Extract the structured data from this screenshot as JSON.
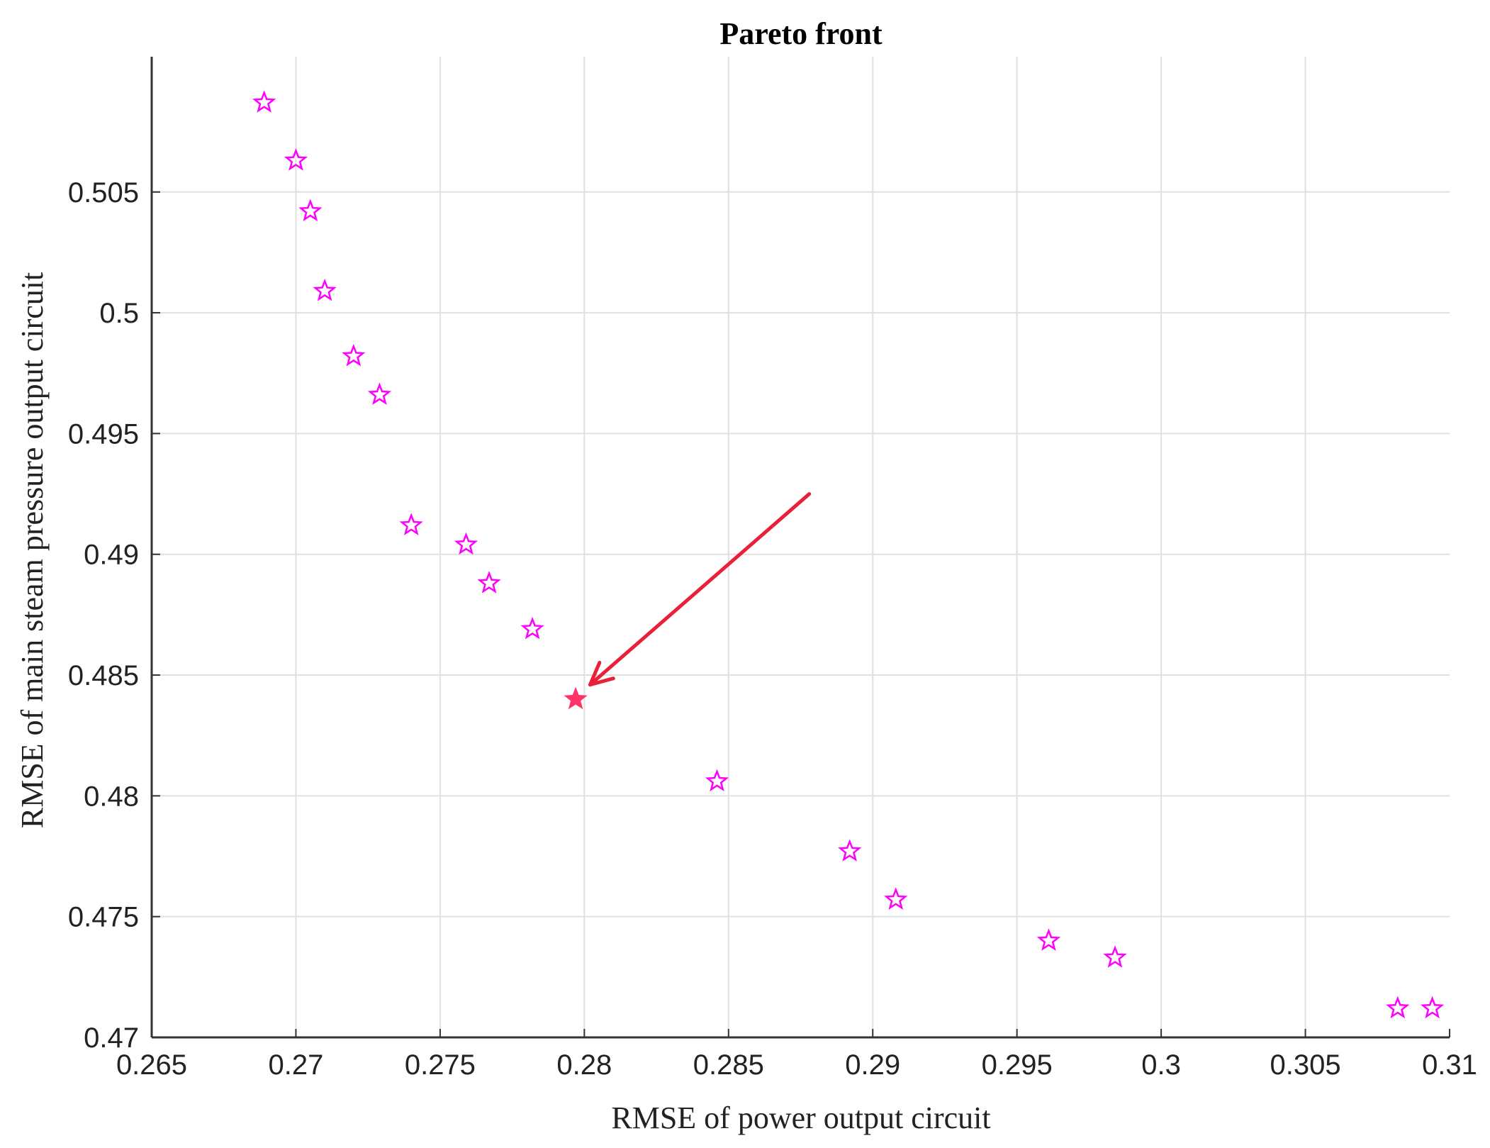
{
  "chart_data": {
    "type": "scatter",
    "title": "Pareto front",
    "xlabel": "RMSE of power output circuit",
    "ylabel": "RMSE of main steam pressure output circuit",
    "xlim": [
      0.265,
      0.31
    ],
    "ylim": [
      0.47,
      0.5106
    ],
    "xticks": [
      0.265,
      0.27,
      0.275,
      0.28,
      0.285,
      0.29,
      0.295,
      0.3,
      0.305,
      0.31
    ],
    "xtick_labels": [
      "0.265",
      "0.27",
      "0.275",
      "0.28",
      "0.285",
      "0.29",
      "0.295",
      "0.3",
      "0.305",
      "0.31"
    ],
    "yticks": [
      0.47,
      0.475,
      0.48,
      0.485,
      0.49,
      0.495,
      0.5,
      0.505
    ],
    "ytick_labels": [
      "0.47",
      "0.475",
      "0.48",
      "0.485",
      "0.49",
      "0.495",
      "0.5",
      "0.505"
    ],
    "grid": true,
    "marker": "pentagram",
    "marker_color": "#ff00ff",
    "highlight_color": "#ff3366",
    "arrow_color": "#e8203a",
    "points": [
      {
        "x": 0.2689,
        "y": 0.5087
      },
      {
        "x": 0.27,
        "y": 0.5063
      },
      {
        "x": 0.2705,
        "y": 0.5042
      },
      {
        "x": 0.271,
        "y": 0.5009
      },
      {
        "x": 0.272,
        "y": 0.4982
      },
      {
        "x": 0.2729,
        "y": 0.4966
      },
      {
        "x": 0.274,
        "y": 0.4912
      },
      {
        "x": 0.2759,
        "y": 0.4904
      },
      {
        "x": 0.2767,
        "y": 0.4888
      },
      {
        "x": 0.2782,
        "y": 0.4869
      },
      {
        "x": 0.2797,
        "y": 0.484,
        "highlight": true
      },
      {
        "x": 0.2846,
        "y": 0.4806
      },
      {
        "x": 0.2892,
        "y": 0.4777
      },
      {
        "x": 0.2908,
        "y": 0.4757
      },
      {
        "x": 0.2961,
        "y": 0.474
      },
      {
        "x": 0.2984,
        "y": 0.4733
      },
      {
        "x": 0.3082,
        "y": 0.4712
      },
      {
        "x": 0.3094,
        "y": 0.4712
      }
    ],
    "annotation": {
      "type": "arrow",
      "from": {
        "x": 0.2878,
        "y": 0.4925
      },
      "to": {
        "x": 0.2802,
        "y": 0.4846
      }
    }
  }
}
